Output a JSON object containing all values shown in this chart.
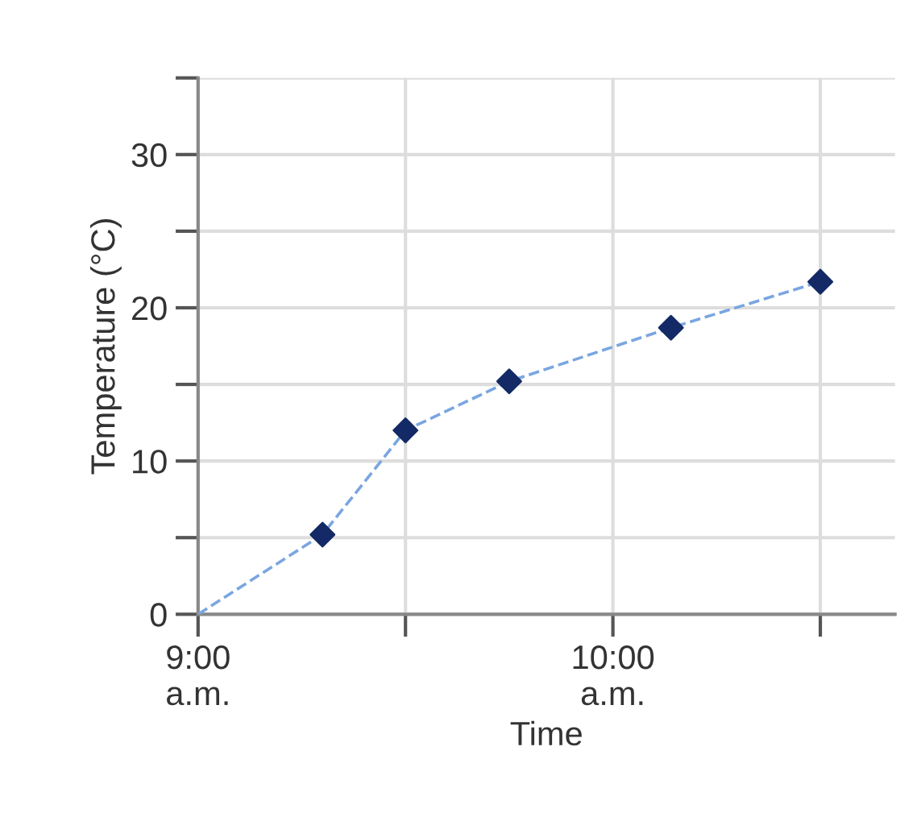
{
  "chart_data": {
    "type": "line",
    "xlabel": "Time",
    "ylabel": "Temperature (°C)",
    "series": [
      {
        "color": "#7aa6e0",
        "line_style": "dashed",
        "marker": "none",
        "x": [
          9,
          9.3,
          9.5,
          9.75,
          10.14,
          10.5
        ],
        "values": [
          0,
          5.2,
          12.0,
          15.2,
          18.7,
          21.7
        ]
      },
      {
        "type": "scatter",
        "color": "#142a66",
        "marker": "diamond",
        "x": [
          9.3,
          9.5,
          9.75,
          10.14,
          10.5
        ],
        "values": [
          5.2,
          12.0,
          15.2,
          18.7,
          21.7
        ]
      }
    ],
    "xlim": [
      9,
      10.68
    ],
    "xticks": [
      {
        "value": 9,
        "label": "9:00\na.m."
      },
      {
        "value": 9.5,
        "label": null
      },
      {
        "value": 10,
        "label": "10:00\na.m."
      },
      {
        "value": 10.5,
        "label": null
      }
    ],
    "ylim": [
      0,
      35
    ],
    "yticks": [
      0,
      {
        "value": 5,
        "label": null
      },
      10,
      {
        "value": 15,
        "label": null
      },
      20,
      {
        "value": 25,
        "label": null
      },
      30,
      {
        "value": 35,
        "label": null
      }
    ],
    "grid": true
  }
}
